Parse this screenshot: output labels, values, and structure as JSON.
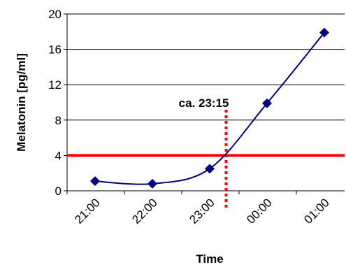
{
  "chart_data": {
    "type": "line",
    "title": "",
    "xlabel": "Time",
    "ylabel": "Melatonin [pg/ml]",
    "ylim": [
      0,
      20
    ],
    "yticks": [
      0,
      4,
      8,
      12,
      16,
      20
    ],
    "xticks": [
      "21:00",
      "22:00",
      "23:00",
      "00:00",
      "01:00"
    ],
    "grid": "horizontal",
    "series": [
      {
        "color": "#000080",
        "marker": "diamond",
        "smooth": true,
        "points": [
          {
            "x": "21:00",
            "y": 1.1
          },
          {
            "x": "22:00",
            "y": 0.8
          },
          {
            "x": "23:00",
            "y": 2.5
          },
          {
            "x": "00:00",
            "y": 9.9
          },
          {
            "x": "01:00",
            "y": 17.9
          }
        ]
      }
    ],
    "threshold": {
      "y": 4,
      "color": "#ff0000"
    },
    "vertical_marker": {
      "x": "23:15",
      "label": "ca. 23:15",
      "color": "#ff0000",
      "style": "dotted"
    }
  }
}
